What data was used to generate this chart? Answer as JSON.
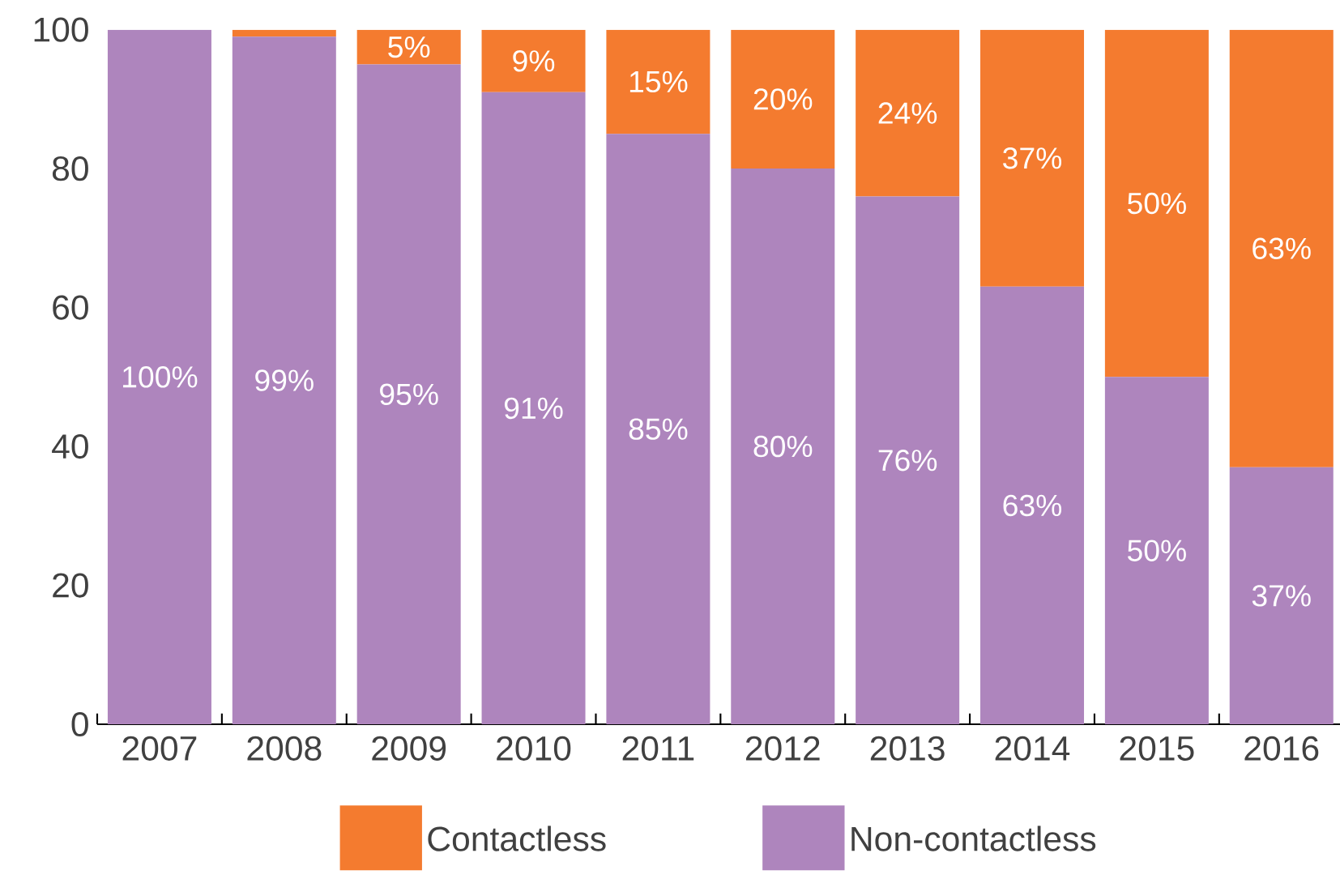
{
  "chart_data": {
    "type": "bar",
    "stacked": true,
    "categories": [
      "2007",
      "2008",
      "2009",
      "2010",
      "2011",
      "2012",
      "2013",
      "2014",
      "2015",
      "2016"
    ],
    "series": [
      {
        "name": "Non-contactless",
        "color": "#ae85bd",
        "values": [
          100,
          99,
          95,
          91,
          85,
          80,
          76,
          63,
          50,
          37
        ],
        "value_labels": [
          "100%",
          "99%",
          "95%",
          "91%",
          "85%",
          "80%",
          "76%",
          "63%",
          "50%",
          "37%"
        ]
      },
      {
        "name": "Contactless",
        "color": "#f47b2f",
        "values": [
          0,
          1,
          5,
          9,
          15,
          20,
          24,
          37,
          50,
          63
        ],
        "value_labels": [
          null,
          null,
          "5%",
          "9%",
          "15%",
          "20%",
          "24%",
          "37%",
          "50%",
          "63%"
        ]
      }
    ],
    "ylim": [
      0,
      100
    ],
    "yticks": [
      0,
      20,
      40,
      60,
      80,
      100
    ],
    "legend": "bottom"
  }
}
